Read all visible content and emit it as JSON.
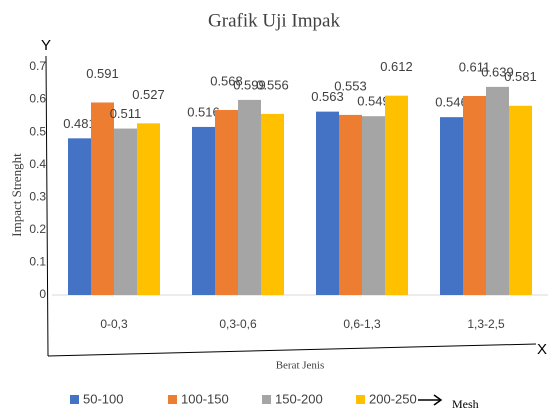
{
  "chart_data": {
    "type": "bar",
    "title": "Grafik Uji Impak",
    "y_axis_label": "Impact Strenght",
    "x_axis_label": "Berat Jenis",
    "y_axis_symbol": "Y",
    "x_axis_symbol": "X",
    "legend_note": "Mesh",
    "categories": [
      "0-0,3",
      "0,3-0,6",
      "0,6-1,3",
      "1,3-2,5"
    ],
    "series": [
      {
        "name": "50-100",
        "color": "#4472c4",
        "values": [
          0.481,
          0.516,
          0.563,
          0.546
        ]
      },
      {
        "name": "100-150",
        "color": "#ed7d31",
        "values": [
          0.591,
          0.568,
          0.553,
          0.611
        ]
      },
      {
        "name": "150-200",
        "color": "#a5a5a5",
        "values": [
          0.511,
          0.599,
          0.549,
          0.639
        ]
      },
      {
        "name": "200-250",
        "color": "#ffc000",
        "values": [
          0.527,
          0.556,
          0.612,
          0.581
        ]
      }
    ],
    "ylim": [
      0,
      0.7
    ],
    "yticks": [
      0,
      0.1,
      0.2,
      0.3,
      0.4,
      0.5,
      0.6,
      0.7
    ],
    "grid": false,
    "legend": "bottom"
  }
}
